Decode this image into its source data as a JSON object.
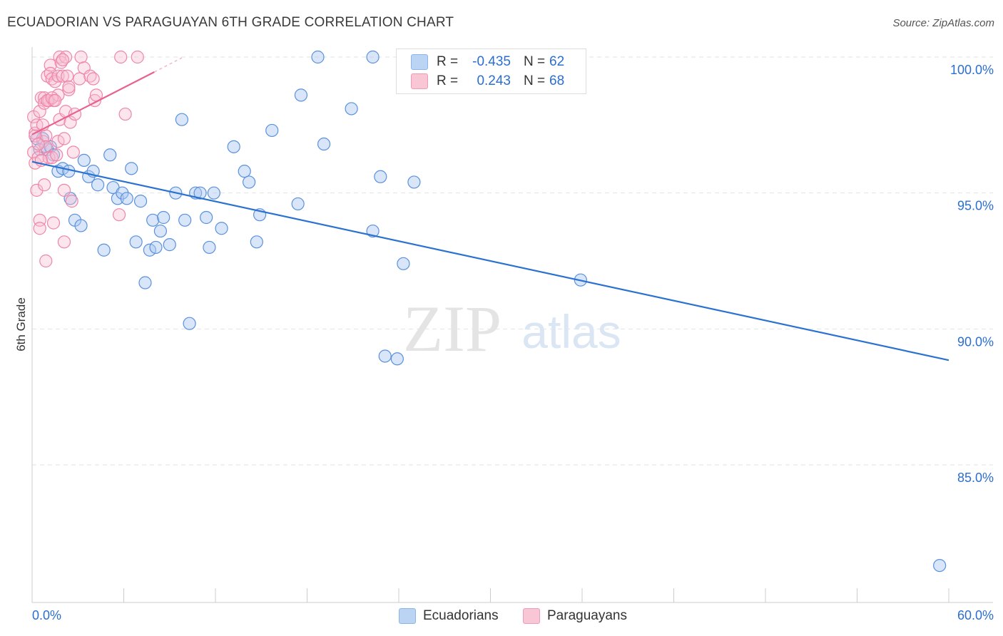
{
  "title": "ECUADORIAN VS PARAGUAYAN 6TH GRADE CORRELATION CHART",
  "source": "Source: ZipAtlas.com",
  "watermark": {
    "zip": "ZIP",
    "atlas": "atlas"
  },
  "legend": {
    "ecuadorians": {
      "r_label": "R =",
      "r_value": "-0.435",
      "n_label": "N =",
      "n_value": "62"
    },
    "paraguayans": {
      "r_label": "R =",
      "r_value": "0.243",
      "n_label": "N =",
      "n_value": "68"
    }
  },
  "chart_data": {
    "type": "scatter",
    "title": "ECUADORIAN VS PARAGUAYAN 6TH GRADE CORRELATION CHART",
    "xlabel": "",
    "ylabel": "6th Grade",
    "xlim": [
      0,
      60
    ],
    "ylim": [
      80.8,
      100.9
    ],
    "x_tick_labels": [
      "0.0%",
      "60.0%"
    ],
    "y_ticks": [
      100,
      95,
      90,
      85
    ],
    "y_tick_labels": [
      "100.0%",
      "95.0%",
      "90.0%",
      "85.0%"
    ],
    "grid": true,
    "legend_position": "top-center",
    "colors": {
      "ecuadorians": "#6a9fe0",
      "paraguayans": "#f08cab",
      "ecu_line": "#2a72d0",
      "par_line": "#e8618f"
    },
    "series": [
      {
        "name": "Ecuadorians",
        "points": [
          [
            0.3,
            97.0
          ],
          [
            0.5,
            96.6
          ],
          [
            0.7,
            97.0
          ],
          [
            1.0,
            96.6
          ],
          [
            1.2,
            96.7
          ],
          [
            1.4,
            96.4
          ],
          [
            1.7,
            95.8
          ],
          [
            2.0,
            95.9
          ],
          [
            2.4,
            95.8
          ],
          [
            2.5,
            94.8
          ],
          [
            2.8,
            94.0
          ],
          [
            3.2,
            93.8
          ],
          [
            3.4,
            96.2
          ],
          [
            3.7,
            95.6
          ],
          [
            4.0,
            95.8
          ],
          [
            4.3,
            95.3
          ],
          [
            4.7,
            92.9
          ],
          [
            5.1,
            96.4
          ],
          [
            5.3,
            95.2
          ],
          [
            5.6,
            94.8
          ],
          [
            5.9,
            95.0
          ],
          [
            6.2,
            94.8
          ],
          [
            6.5,
            95.9
          ],
          [
            6.8,
            93.2
          ],
          [
            7.1,
            94.7
          ],
          [
            7.4,
            91.7
          ],
          [
            7.7,
            92.9
          ],
          [
            7.9,
            94.0
          ],
          [
            8.1,
            93.0
          ],
          [
            8.4,
            93.6
          ],
          [
            8.6,
            94.1
          ],
          [
            9.0,
            93.1
          ],
          [
            9.4,
            95.0
          ],
          [
            9.8,
            97.7
          ],
          [
            10.0,
            94.0
          ],
          [
            10.3,
            90.2
          ],
          [
            10.7,
            95.0
          ],
          [
            11.0,
            95.0
          ],
          [
            11.4,
            94.1
          ],
          [
            11.6,
            93.0
          ],
          [
            11.9,
            95.0
          ],
          [
            12.4,
            93.7
          ],
          [
            13.2,
            96.7
          ],
          [
            13.9,
            95.8
          ],
          [
            14.2,
            95.4
          ],
          [
            14.9,
            94.2
          ],
          [
            14.7,
            93.2
          ],
          [
            15.7,
            97.3
          ],
          [
            17.4,
            94.6
          ],
          [
            17.6,
            98.6
          ],
          [
            18.7,
            100.0
          ],
          [
            19.1,
            96.8
          ],
          [
            20.9,
            98.1
          ],
          [
            22.3,
            100.0
          ],
          [
            22.3,
            93.6
          ],
          [
            22.8,
            95.6
          ],
          [
            23.1,
            89.0
          ],
          [
            23.9,
            88.9
          ],
          [
            24.3,
            92.4
          ],
          [
            25.0,
            95.4
          ],
          [
            35.9,
            91.8
          ],
          [
            59.4,
            81.3
          ]
        ]
      },
      {
        "name": "Paraguayans",
        "points": [
          [
            0.1,
            97.8
          ],
          [
            0.1,
            96.5
          ],
          [
            0.2,
            96.1
          ],
          [
            0.2,
            97.2
          ],
          [
            0.3,
            97.5
          ],
          [
            0.3,
            95.1
          ],
          [
            0.4,
            96.3
          ],
          [
            0.5,
            98.0
          ],
          [
            0.5,
            94.0
          ],
          [
            0.5,
            93.7
          ],
          [
            0.6,
            98.5
          ],
          [
            0.7,
            96.9
          ],
          [
            0.8,
            98.5
          ],
          [
            0.8,
            98.3
          ],
          [
            0.8,
            95.3
          ],
          [
            0.9,
            97.1
          ],
          [
            0.9,
            96.7
          ],
          [
            0.9,
            92.5
          ],
          [
            1.0,
            99.3
          ],
          [
            1.0,
            98.4
          ],
          [
            1.1,
            98.4
          ],
          [
            1.1,
            96.3
          ],
          [
            1.2,
            99.7
          ],
          [
            1.2,
            99.4
          ],
          [
            1.3,
            99.2
          ],
          [
            1.3,
            96.3
          ],
          [
            1.4,
            98.4
          ],
          [
            1.4,
            93.9
          ],
          [
            1.5,
            99.1
          ],
          [
            1.6,
            96.4
          ],
          [
            1.7,
            99.3
          ],
          [
            1.7,
            98.6
          ],
          [
            1.7,
            96.9
          ],
          [
            1.8,
            97.7
          ],
          [
            1.8,
            100.0
          ],
          [
            1.9,
            99.8
          ],
          [
            2.0,
            99.3
          ],
          [
            2.1,
            95.1
          ],
          [
            2.1,
            97.0
          ],
          [
            2.1,
            93.2
          ],
          [
            2.2,
            100.0
          ],
          [
            2.2,
            98.0
          ],
          [
            2.3,
            99.3
          ],
          [
            2.4,
            98.8
          ],
          [
            2.4,
            98.9
          ],
          [
            2.5,
            97.6
          ],
          [
            2.6,
            94.7
          ],
          [
            2.7,
            96.5
          ],
          [
            2.8,
            97.9
          ],
          [
            3.1,
            99.2
          ],
          [
            3.2,
            100.0
          ],
          [
            3.4,
            99.6
          ],
          [
            3.8,
            99.3
          ],
          [
            4.0,
            99.2
          ],
          [
            4.1,
            98.4
          ],
          [
            4.2,
            98.6
          ],
          [
            5.7,
            94.2
          ],
          [
            5.8,
            100.0
          ],
          [
            6.1,
            97.9
          ],
          [
            6.9,
            100.0
          ],
          [
            0.2,
            97.1
          ],
          [
            0.4,
            96.8
          ],
          [
            0.6,
            96.2
          ],
          [
            1.0,
            98.4
          ],
          [
            1.3,
            98.5
          ],
          [
            1.5,
            98.4
          ],
          [
            2.0,
            99.9
          ],
          [
            0.7,
            97.5
          ]
        ]
      }
    ],
    "trend_lines": [
      {
        "name": "Ecuadorians",
        "x": [
          0,
          60
        ],
        "y": [
          96.15,
          88.85
        ]
      },
      {
        "name": "Paraguayans",
        "x": [
          0,
          8.0
        ],
        "y": [
          97.15,
          99.45
        ]
      },
      {
        "name": "Paraguayans-extension",
        "x": [
          8.0,
          9.8
        ],
        "y": [
          99.45,
          99.97
        ]
      }
    ]
  },
  "bottom_legend": [
    {
      "key": "ecuadorians",
      "label": "Ecuadorians"
    },
    {
      "key": "paraguayans",
      "label": "Paraguayans"
    }
  ]
}
